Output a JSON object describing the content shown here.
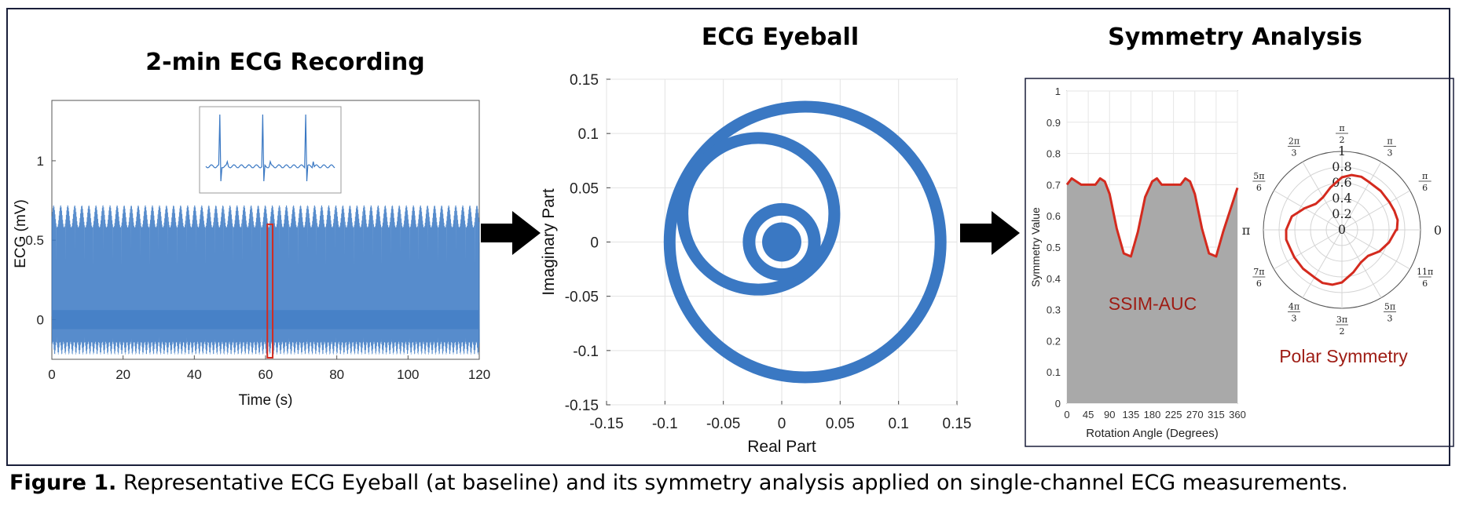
{
  "caption": {
    "label": "Figure 1.",
    "text": "Representative ECG Eyeball (at baseline) and its symmetry analysis applied on single-channel ECG measurements."
  },
  "colors": {
    "signal": "#3a78c3",
    "highlight": "#d42a1e",
    "area": "#a9a9a9",
    "frame": "#1a1f3a",
    "annotation": "#9e1c14"
  },
  "panels": {
    "recording": {
      "title": "2-min ECG Recording"
    },
    "eyeball": {
      "title": "ECG Eyeball"
    },
    "symmetry": {
      "title": "Symmetry Analysis",
      "auc_label": "SSIM-AUC",
      "polar_label": "Polar Symmetry"
    }
  },
  "chart_data": [
    {
      "id": "ecg-recording",
      "type": "line",
      "title": "2-min ECG Recording",
      "xlabel": "Time (s)",
      "ylabel": "ECG (mV)",
      "xlim": [
        0,
        120
      ],
      "ylim": [
        -0.25,
        1.38
      ],
      "xticks": [
        0,
        20,
        40,
        60,
        80,
        100,
        120
      ],
      "yticks": [
        0,
        0.5,
        1
      ],
      "ytick_labels": [
        "0",
        "0.5",
        "1"
      ],
      "series": [
        {
          "name": "ECG",
          "baseline": 0,
          "r_peak_amplitude": 0.7,
          "trough_amplitude": -0.18,
          "beat_interval_s": 1.0
        }
      ],
      "highlight_window_s": [
        60.5,
        62.0
      ],
      "inset": {
        "description": "zoomed ECG segment",
        "beats": 3
      }
    },
    {
      "id": "ecg-eyeball",
      "type": "line",
      "title": "ECG Eyeball",
      "xlabel": "Real Part",
      "ylabel": "Imaginary Part",
      "xlim": [
        -0.15,
        0.15
      ],
      "ylim": [
        -0.15,
        0.15
      ],
      "xticks": [
        -0.15,
        -0.1,
        -0.05,
        0,
        0.05,
        0.1,
        0.15
      ],
      "yticks": [
        -0.15,
        -0.1,
        -0.05,
        0,
        0.05,
        0.1,
        0.15
      ],
      "loops": [
        {
          "name": "outer",
          "center": [
            0.02,
            0.0
          ],
          "radius": 0.116
        },
        {
          "name": "middle",
          "center": [
            -0.02,
            0.026
          ],
          "radius": 0.065
        },
        {
          "name": "inner",
          "center": [
            0.0,
            0.0
          ],
          "radius": 0.028
        }
      ]
    },
    {
      "id": "ssim-auc",
      "type": "area",
      "xlabel": "Rotation Angle (Degrees)",
      "ylabel": "Symmetry Value",
      "xlim": [
        0,
        360
      ],
      "ylim": [
        0,
        1
      ],
      "xticks": [
        0,
        45,
        90,
        135,
        180,
        225,
        270,
        315,
        360
      ],
      "yticks": [
        0,
        0.1,
        0.2,
        0.3,
        0.4,
        0.5,
        0.6,
        0.7,
        0.8,
        0.9,
        1
      ],
      "ytick_labels": [
        "0",
        "0.1",
        "0.2",
        "0.3",
        "0.4",
        "0.5",
        "0.6",
        "0.7",
        "0.8",
        "0.9",
        "1"
      ],
      "x": [
        0,
        10,
        20,
        30,
        45,
        60,
        70,
        80,
        90,
        105,
        120,
        135,
        150,
        165,
        180,
        190,
        200,
        210,
        225,
        240,
        250,
        260,
        270,
        285,
        300,
        315,
        330,
        345,
        360
      ],
      "values": [
        0.7,
        0.72,
        0.71,
        0.7,
        0.7,
        0.7,
        0.72,
        0.71,
        0.67,
        0.56,
        0.48,
        0.47,
        0.55,
        0.66,
        0.71,
        0.72,
        0.7,
        0.7,
        0.7,
        0.7,
        0.72,
        0.71,
        0.67,
        0.56,
        0.48,
        0.47,
        0.55,
        0.62,
        0.69
      ],
      "annotation": "SSIM-AUC"
    },
    {
      "id": "polar-symmetry",
      "type": "line",
      "projection": "polar",
      "rticks": [
        0,
        0.2,
        0.4,
        0.6,
        0.8,
        1
      ],
      "rtick_labels": [
        "0",
        "0.2",
        "0.4",
        "0.6",
        "0.8",
        "1"
      ],
      "angle_ticks": [
        {
          "rad": 0.0,
          "label": "0"
        },
        {
          "rad": 0.5236,
          "label": "π/6"
        },
        {
          "rad": 1.0472,
          "label": "π/3"
        },
        {
          "rad": 1.5708,
          "label": "π/2"
        },
        {
          "rad": 2.0944,
          "label": "2π/3"
        },
        {
          "rad": 2.618,
          "label": "5π/6"
        },
        {
          "rad": 3.1416,
          "label": "π"
        },
        {
          "rad": 3.6652,
          "label": "7π/6"
        },
        {
          "rad": 4.1888,
          "label": "4π/3"
        },
        {
          "rad": 4.7124,
          "label": "3π/2"
        },
        {
          "rad": 5.236,
          "label": "5π/3"
        },
        {
          "rad": 5.7596,
          "label": "11π/6"
        }
      ],
      "series": [
        {
          "name": "Polar Symmetry",
          "source": "ssim-auc",
          "theta_deg": "x",
          "r": "values"
        }
      ],
      "annotation": "Polar Symmetry"
    }
  ]
}
